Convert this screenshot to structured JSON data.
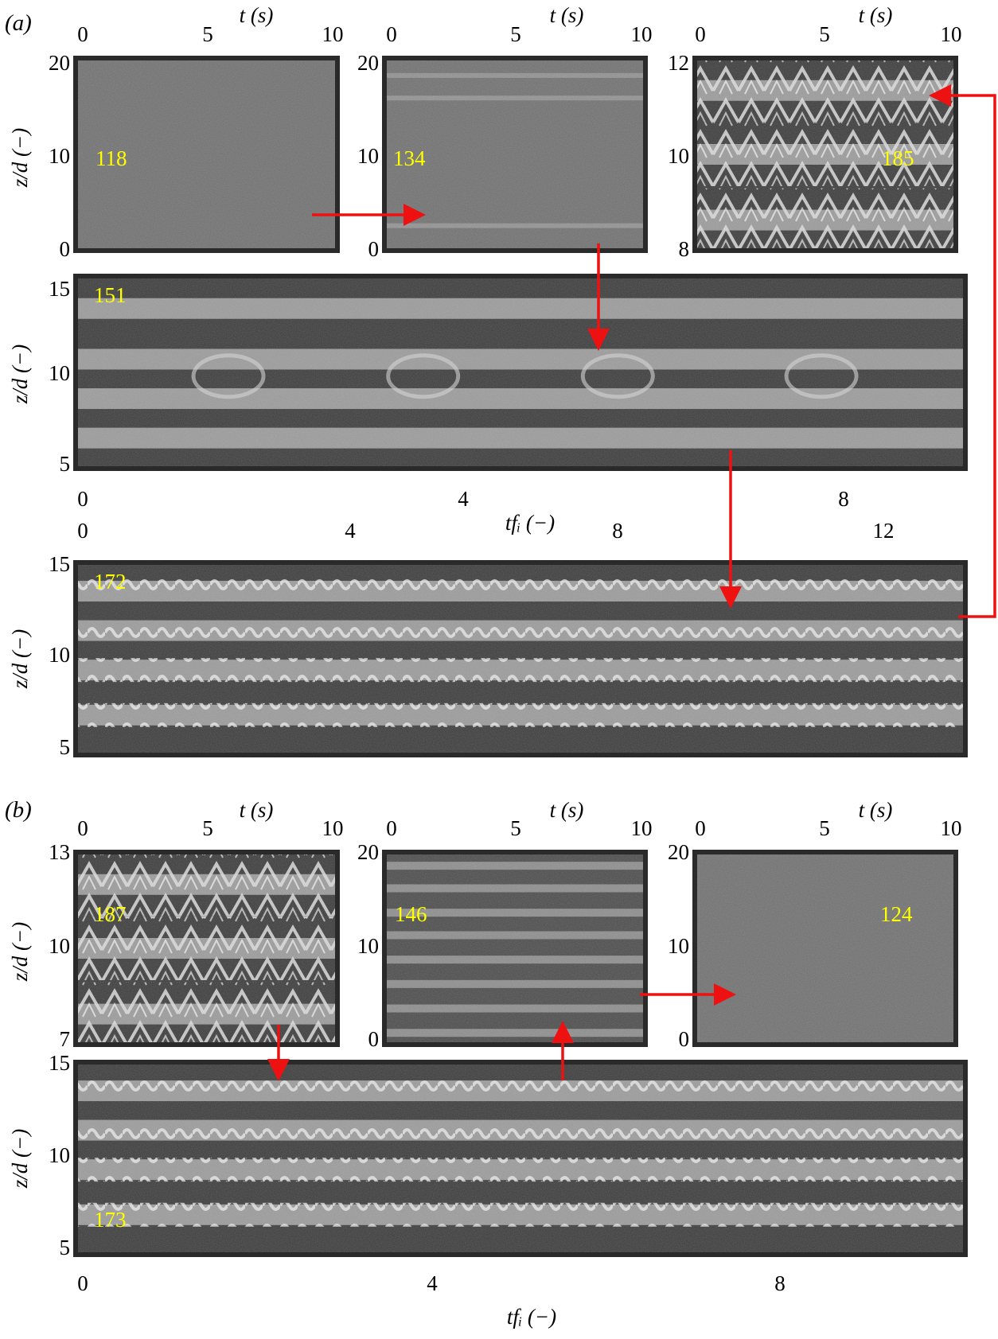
{
  "figure": {
    "panel_labels": {
      "a": "(a)",
      "b": "(b)"
    },
    "axis_titles": {
      "time": "t (s)",
      "height": "z/d (−)",
      "phase": "tfᵢ (−)"
    },
    "colors": {
      "arrow": "#ee1111",
      "case_label": "#ffff00",
      "frame": "#2a2a2a"
    }
  },
  "panels": [
    {
      "id": "a1",
      "case": "118",
      "x_axis": "t",
      "xticks": [
        "0",
        "5",
        "10"
      ],
      "yticks": [
        "20",
        "10",
        "0"
      ],
      "texture": "quiet",
      "bands": []
    },
    {
      "id": "a2",
      "case": "134",
      "x_axis": "t",
      "xticks": [
        "0",
        "5",
        "10"
      ],
      "yticks": [
        "20",
        "10",
        "0"
      ],
      "texture": "faint-stripes",
      "bands": []
    },
    {
      "id": "a3",
      "case": "185",
      "x_axis": "t",
      "xticks": [
        "0",
        "5",
        "10"
      ],
      "yticks": [
        "12",
        "10",
        "8"
      ],
      "texture": "zigzag",
      "bands": []
    },
    {
      "id": "a4",
      "case": "151",
      "x_axis": "tf_i",
      "xticks": [
        "0",
        "4",
        "8"
      ],
      "yticks": [
        "15",
        "10",
        "5"
      ],
      "texture": "bands-eyes",
      "bands": []
    },
    {
      "id": "a5",
      "case": "172",
      "x_axis": "tf_i",
      "xticks": [
        "0",
        "4",
        "8",
        "12"
      ],
      "yticks": [
        "15",
        "10",
        "5"
      ],
      "texture": "bands-wavy",
      "bands": []
    },
    {
      "id": "b1",
      "case": "187",
      "x_axis": "t",
      "xticks": [
        "0",
        "5",
        "10"
      ],
      "yticks": [
        "13",
        "10",
        "7"
      ],
      "texture": "zigzag",
      "bands": []
    },
    {
      "id": "b2",
      "case": "146",
      "x_axis": "t",
      "xticks": [
        "0",
        "5",
        "10"
      ],
      "yticks": [
        "20",
        "10",
        "0"
      ],
      "texture": "stripes",
      "bands": []
    },
    {
      "id": "b3",
      "case": "124",
      "x_axis": "t",
      "xticks": [
        "0",
        "5",
        "10"
      ],
      "yticks": [
        "20",
        "10",
        "0"
      ],
      "texture": "quiet",
      "bands": []
    },
    {
      "id": "b4",
      "case": "173",
      "x_axis": "tf_i",
      "xticks": [
        "0",
        "4",
        "8"
      ],
      "yticks": [
        "15",
        "10",
        "5"
      ],
      "texture": "bands-wavy",
      "bands": []
    }
  ]
}
